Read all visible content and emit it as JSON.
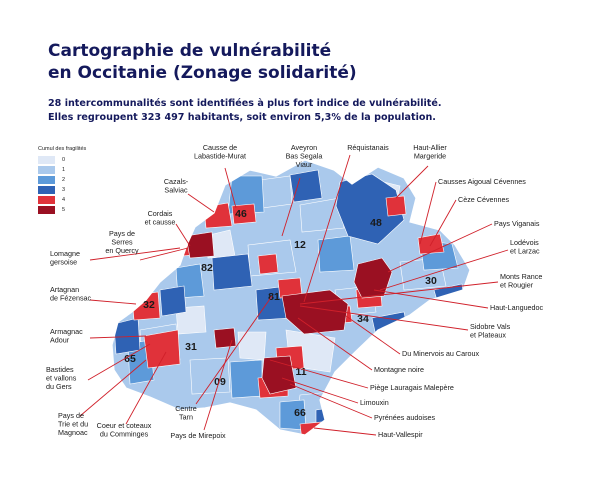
{
  "header": {
    "title_line1": "Cartographie de vulnérabilité",
    "title_line2": "en Occitanie (Zonage solidarité)",
    "subtitle_line1": "28 intercommunalités sont identifiées à plus fort indice de vulnérabilité.",
    "subtitle_line2": "Elles regroupent 323 497 habitants, soit environ 5,3% de la population."
  },
  "legend": {
    "title": "Cumul des fragilités",
    "items": [
      {
        "label": "0",
        "color": "#dfe8f6"
      },
      {
        "label": "1",
        "color": "#aac9ec"
      },
      {
        "label": "2",
        "color": "#5d9ad9"
      },
      {
        "label": "3",
        "color": "#2f62b4"
      },
      {
        "label": "4",
        "color": "#e0323a"
      },
      {
        "label": "5",
        "color": "#9a1022"
      }
    ]
  },
  "departments": [
    "46",
    "48",
    "12",
    "82",
    "30",
    "81",
    "34",
    "32",
    "31",
    "65",
    "09",
    "11",
    "66"
  ],
  "place_labels": {
    "causse_labastide": [
      "Causse de",
      "Labastide-Murat"
    ],
    "aveyron_bas_segala": [
      "Aveyron",
      "Bas Segala",
      "Viaur"
    ],
    "requistanais": [
      "Réquistanais"
    ],
    "haut_allier": [
      "Haut-Allier",
      "Margeride"
    ],
    "causses_aigoual": [
      "Causses Aigoual Cévennes"
    ],
    "cazals_salviac": [
      "Cazals-",
      "Salviac"
    ],
    "cordais": [
      "Cordais",
      "et causse"
    ],
    "cize_cevennes": [
      "Cèze Cévennes"
    ],
    "pays_viganais": [
      "Pays Viganais"
    ],
    "lodevois": [
      "Lodévois",
      "et Larzac"
    ],
    "pays_serres": [
      "Pays de",
      "Serres",
      "en Quercy"
    ],
    "lomagne": [
      "Lomagne",
      "gersoise"
    ],
    "monts_rance": [
      "Monts Rance",
      "et Rougier"
    ],
    "artagnan": [
      "Artagnan",
      "de Fézensac"
    ],
    "haut_languedoc": [
      "Haut-Languedoc"
    ],
    "armagnac": [
      "Armagnac",
      "Adour"
    ],
    "sidobre": [
      "Sidobre Vals",
      "et Plateaux"
    ],
    "bastides": [
      "Bastides",
      "et vallons",
      "du Gers"
    ],
    "du_minervois": [
      "Du Minervois au Caroux"
    ],
    "montagne_noire": [
      "Montagne noire"
    ],
    "piege_lauragais": [
      "Piège Lauragais Malepère"
    ],
    "limouxin": [
      "Limouxin"
    ],
    "pays_trie": [
      "Pays de",
      "Trie et du",
      "Magnoac"
    ],
    "coeur_coteaux": [
      "Coeur et coteaux",
      "du Comminges"
    ],
    "centre_tarn": [
      "Centre",
      "Tarn"
    ],
    "pyrenees_audoises": [
      "Pyrénées audoises"
    ],
    "pays_mirepoix": [
      "Pays de Mirepoix"
    ],
    "haut_vallespir": [
      "Haut-Vallespir"
    ]
  }
}
